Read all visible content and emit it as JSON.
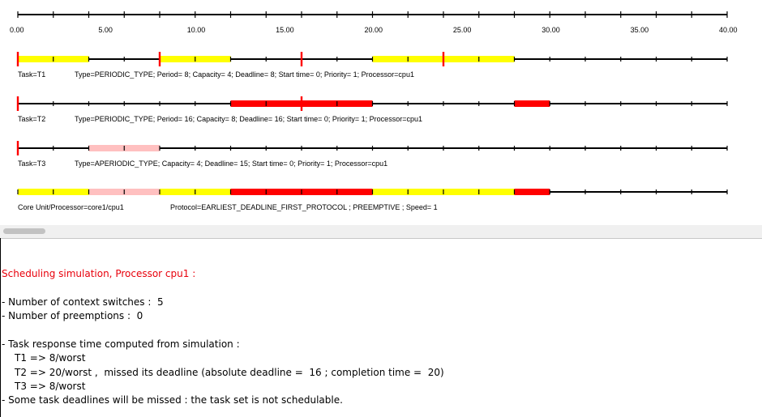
{
  "timeline": {
    "range": [
      0,
      40
    ],
    "tick_labels": [
      "0.00",
      "5.00",
      "10.00",
      "15.00",
      "20.00",
      "25.00",
      "30.00",
      "35.00",
      "40.00"
    ],
    "colors": {
      "running": "#ffff00",
      "missed": "#ff0000",
      "aperiodic": "#ffc0c0",
      "release": "#ff0000"
    },
    "rows": [
      {
        "id": "T1",
        "task_label": "Task=T1",
        "info": "Type=PERIODIC_TYPE; Period= 8; Capacity= 4; Deadline= 8; Start time= 0; Priority= 1; Processor=cpu1",
        "segments": [
          {
            "start": 0,
            "end": 4,
            "state": "running"
          },
          {
            "start": 8,
            "end": 12,
            "state": "running"
          },
          {
            "start": 20,
            "end": 28,
            "state": "running"
          }
        ],
        "release_marks": [
          0,
          8,
          16,
          24
        ]
      },
      {
        "id": "T2",
        "task_label": "Task=T2",
        "info": "Type=PERIODIC_TYPE; Period= 16; Capacity= 8; Deadline= 16; Start time= 0; Priority= 1; Processor=cpu1",
        "segments": [
          {
            "start": 12,
            "end": 20,
            "state": "missed"
          },
          {
            "start": 28,
            "end": 30,
            "state": "missed"
          }
        ],
        "release_marks": [
          0,
          16
        ]
      },
      {
        "id": "T3",
        "task_label": "Task=T3",
        "info": "Type=APERIODIC_TYPE; Capacity= 4; Deadline= 15; Start time= 0; Priority= 1; Processor=cpu1",
        "segments": [
          {
            "start": 4,
            "end": 8,
            "state": "aperiodic"
          }
        ],
        "release_marks": [
          0
        ]
      },
      {
        "id": "core",
        "task_label": "Core Unit/Processor=core1/cpu1",
        "info": "Protocol=EARLIEST_DEADLINE_FIRST_PROTOCOL ; PREEMPTIVE ; Speed= 1",
        "segments": [
          {
            "start": 0,
            "end": 4,
            "state": "running"
          },
          {
            "start": 4,
            "end": 8,
            "state": "aperiodic"
          },
          {
            "start": 8,
            "end": 12,
            "state": "running"
          },
          {
            "start": 12,
            "end": 20,
            "state": "missed"
          },
          {
            "start": 20,
            "end": 28,
            "state": "running"
          },
          {
            "start": 28,
            "end": 30,
            "state": "missed"
          }
        ],
        "release_marks": []
      }
    ]
  },
  "report": {
    "heading": "Scheduling simulation, Processor cpu1 :",
    "context_switches": "- Number of context switches :  5",
    "preemptions": "- Number of preemptions :  0",
    "response_title": "- Task response time computed from simulation :",
    "t1": "T1 => 8/worst",
    "t2": "T2 => 20/worst ,  missed its deadline (absolute deadline =  16 ; completion time =  20)",
    "t3": "T3 => 8/worst",
    "conclusion": "- Some task deadlines will be missed : the task set is not schedulable."
  }
}
